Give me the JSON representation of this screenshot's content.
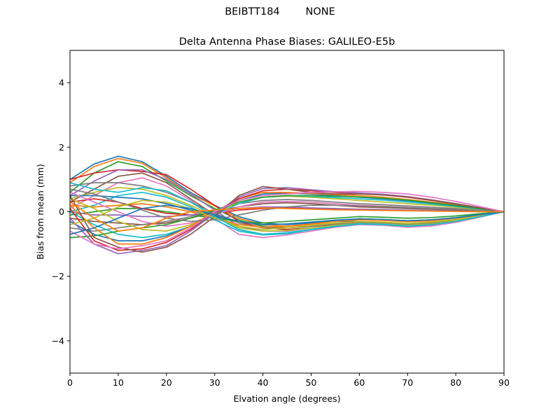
{
  "figure": {
    "suptitle": "BEIBTT184        NONE"
  },
  "chart_data": {
    "type": "line",
    "title": "Delta Antenna Phase Biases: GALILEO-E5b",
    "xlabel": "Elvation angle (degrees)",
    "ylabel": "Bias from mean (mm)",
    "xlim": [
      0,
      90
    ],
    "ylim": [
      -5,
      5
    ],
    "xticks": [
      0,
      10,
      20,
      30,
      40,
      50,
      60,
      70,
      80,
      90
    ],
    "yticks": [
      -4,
      -2,
      0,
      2,
      4
    ],
    "ytick_labels": [
      "−4",
      "−2",
      "0",
      "2",
      "4"
    ],
    "grid": false,
    "legend": "none",
    "x": [
      0,
      5,
      10,
      15,
      20,
      25,
      30,
      35,
      40,
      45,
      50,
      55,
      60,
      65,
      70,
      75,
      80,
      85,
      90
    ],
    "colors": [
      "#1f77b4",
      "#ff7f0e",
      "#2ca02c",
      "#d62728",
      "#9467bd",
      "#8c564b",
      "#e377c2",
      "#7f7f7f",
      "#bcbd22",
      "#17becf"
    ],
    "series": [
      {
        "values": [
          1.0,
          1.48,
          1.72,
          1.55,
          1.1,
          0.6,
          0.2,
          -0.15,
          -0.35,
          -0.4,
          -0.35,
          -0.3,
          -0.3,
          -0.35,
          -0.4,
          -0.35,
          -0.25,
          -0.12,
          0
        ]
      },
      {
        "values": [
          0.9,
          1.4,
          1.65,
          1.5,
          1.05,
          0.55,
          0.18,
          -0.2,
          -0.4,
          -0.45,
          -0.4,
          -0.35,
          -0.35,
          -0.4,
          -0.42,
          -0.38,
          -0.28,
          -0.14,
          0
        ]
      },
      {
        "values": [
          0.6,
          1.2,
          1.55,
          1.4,
          0.95,
          0.5,
          0.1,
          -0.25,
          -0.45,
          -0.5,
          -0.45,
          -0.38,
          -0.32,
          -0.35,
          -0.4,
          -0.36,
          -0.27,
          -0.13,
          0
        ]
      },
      {
        "values": [
          1.0,
          1.2,
          1.3,
          1.25,
          1.15,
          0.7,
          0.2,
          -0.3,
          -0.5,
          -0.55,
          -0.5,
          -0.4,
          -0.35,
          -0.38,
          -0.45,
          -0.4,
          -0.3,
          -0.15,
          0
        ]
      },
      {
        "values": [
          0.5,
          0.95,
          1.3,
          1.3,
          1.0,
          0.55,
          0.05,
          -0.45,
          -0.6,
          -0.6,
          -0.5,
          -0.42,
          -0.35,
          -0.38,
          -0.44,
          -0.4,
          -0.3,
          -0.15,
          0
        ]
      },
      {
        "values": [
          0.3,
          0.7,
          1.1,
          1.2,
          0.9,
          0.4,
          -0.1,
          -0.55,
          -0.7,
          -0.65,
          -0.55,
          -0.45,
          -0.38,
          -0.4,
          -0.46,
          -0.42,
          -0.32,
          -0.16,
          0
        ]
      },
      {
        "values": [
          0.1,
          0.5,
          0.9,
          1.05,
          0.8,
          0.35,
          -0.2,
          -0.7,
          -0.8,
          -0.72,
          -0.6,
          -0.48,
          -0.4,
          -0.42,
          -0.48,
          -0.44,
          -0.33,
          -0.17,
          0
        ]
      },
      {
        "values": [
          0.8,
          0.9,
          0.9,
          0.8,
          0.6,
          0.3,
          -0.05,
          -0.35,
          -0.5,
          -0.5,
          -0.45,
          -0.38,
          -0.33,
          -0.35,
          -0.4,
          -0.36,
          -0.27,
          -0.13,
          0
        ]
      },
      {
        "values": [
          0.4,
          0.6,
          0.75,
          0.7,
          0.5,
          0.2,
          -0.15,
          -0.5,
          -0.6,
          -0.58,
          -0.5,
          -0.42,
          -0.36,
          -0.38,
          -0.42,
          -0.38,
          -0.28,
          -0.14,
          0
        ]
      },
      {
        "values": [
          0.0,
          0.2,
          0.5,
          0.6,
          0.45,
          0.15,
          -0.25,
          -0.6,
          -0.72,
          -0.68,
          -0.56,
          -0.46,
          -0.38,
          -0.4,
          -0.45,
          -0.4,
          -0.3,
          -0.15,
          0
        ]
      },
      {
        "values": [
          0.5,
          0.5,
          0.45,
          0.4,
          0.25,
          0.05,
          -0.15,
          -0.3,
          -0.4,
          -0.38,
          -0.32,
          -0.26,
          -0.22,
          -0.24,
          -0.28,
          -0.25,
          -0.18,
          -0.09,
          0
        ]
      },
      {
        "values": [
          0.2,
          0.15,
          0.2,
          0.25,
          0.15,
          0.0,
          -0.2,
          -0.4,
          -0.48,
          -0.45,
          -0.38,
          -0.3,
          -0.25,
          -0.27,
          -0.31,
          -0.28,
          -0.2,
          -0.1,
          0
        ]
      },
      {
        "values": [
          -0.1,
          0.0,
          0.1,
          0.1,
          0.0,
          -0.1,
          -0.2,
          -0.3,
          -0.35,
          -0.3,
          -0.25,
          -0.2,
          -0.15,
          -0.17,
          -0.2,
          -0.18,
          -0.13,
          -0.06,
          0
        ]
      },
      {
        "values": [
          0.3,
          0.4,
          0.3,
          0.1,
          -0.05,
          -0.1,
          -0.05,
          0.05,
          0.1,
          0.12,
          0.1,
          0.08,
          0.06,
          0.05,
          0.04,
          0.03,
          0.02,
          0.01,
          0
        ]
      },
      {
        "values": [
          0.0,
          -0.1,
          -0.1,
          -0.15,
          -0.15,
          -0.1,
          0.0,
          0.1,
          0.15,
          0.15,
          0.12,
          0.1,
          0.08,
          0.07,
          0.05,
          0.04,
          0.03,
          0.01,
          0
        ]
      },
      {
        "values": [
          -0.2,
          -0.3,
          -0.35,
          -0.4,
          -0.35,
          -0.2,
          0.0,
          0.15,
          0.25,
          0.28,
          0.25,
          0.2,
          0.15,
          0.13,
          0.1,
          0.08,
          0.05,
          0.02,
          0
        ]
      },
      {
        "values": [
          0.6,
          0.3,
          0.0,
          -0.3,
          -0.45,
          -0.35,
          -0.1,
          0.15,
          0.3,
          0.32,
          0.3,
          0.25,
          0.2,
          0.17,
          0.14,
          0.1,
          0.07,
          0.03,
          0
        ]
      },
      {
        "values": [
          -0.5,
          -0.6,
          -0.5,
          -0.4,
          -0.3,
          -0.15,
          0.05,
          0.25,
          0.35,
          0.38,
          0.35,
          0.3,
          0.25,
          0.22,
          0.18,
          0.14,
          0.1,
          0.05,
          0
        ]
      },
      {
        "values": [
          0.4,
          0.1,
          -0.3,
          -0.55,
          -0.6,
          -0.4,
          -0.05,
          0.3,
          0.45,
          0.48,
          0.45,
          0.4,
          0.35,
          0.3,
          0.25,
          0.2,
          0.14,
          0.07,
          0
        ]
      },
      {
        "values": [
          0.0,
          -0.4,
          -0.7,
          -0.8,
          -0.7,
          -0.45,
          -0.1,
          0.25,
          0.45,
          0.5,
          0.48,
          0.44,
          0.4,
          0.36,
          0.3,
          0.24,
          0.17,
          0.08,
          0
        ]
      },
      {
        "values": [
          -0.3,
          -0.7,
          -0.9,
          -0.9,
          -0.75,
          -0.45,
          -0.05,
          0.35,
          0.55,
          0.58,
          0.55,
          0.5,
          0.45,
          0.4,
          0.34,
          0.27,
          0.19,
          0.09,
          0
        ]
      },
      {
        "values": [
          0.2,
          -0.5,
          -1.0,
          -1.0,
          -0.8,
          -0.45,
          0.0,
          0.4,
          0.6,
          0.6,
          0.57,
          0.53,
          0.5,
          0.45,
          0.38,
          0.3,
          0.21,
          0.1,
          0
        ]
      },
      {
        "values": [
          -0.8,
          -0.75,
          -0.6,
          -0.5,
          -0.4,
          -0.2,
          0.05,
          0.3,
          0.45,
          0.5,
          0.5,
          0.48,
          0.46,
          0.42,
          0.36,
          0.28,
          0.2,
          0.1,
          0
        ]
      },
      {
        "values": [
          0.1,
          -0.9,
          -1.2,
          -1.15,
          -0.95,
          -0.55,
          -0.05,
          0.4,
          0.65,
          0.7,
          0.65,
          0.6,
          0.57,
          0.52,
          0.45,
          0.35,
          0.24,
          0.12,
          0
        ]
      },
      {
        "values": [
          -0.2,
          -1.0,
          -1.3,
          -1.2,
          -1.05,
          -0.6,
          -0.05,
          0.45,
          0.72,
          0.75,
          0.68,
          0.62,
          0.58,
          0.54,
          0.47,
          0.37,
          0.25,
          0.12,
          0
        ]
      },
      {
        "values": [
          0.5,
          -0.8,
          -1.1,
          -1.25,
          -1.1,
          -0.7,
          -0.15,
          0.5,
          0.78,
          0.7,
          0.6,
          0.55,
          0.55,
          0.52,
          0.46,
          0.36,
          0.25,
          0.12,
          0
        ]
      },
      {
        "values": [
          -0.6,
          -1.0,
          -1.15,
          -1.05,
          -0.9,
          -0.5,
          0.0,
          0.35,
          0.5,
          0.55,
          0.6,
          0.62,
          0.63,
          0.6,
          0.55,
          0.45,
          0.32,
          0.16,
          0
        ]
      },
      {
        "values": [
          0.7,
          0.55,
          0.3,
          0.05,
          -0.2,
          -0.3,
          -0.25,
          -0.1,
          0.05,
          0.15,
          0.2,
          0.2,
          0.18,
          0.16,
          0.13,
          0.1,
          0.07,
          0.03,
          0
        ]
      },
      {
        "values": [
          -0.4,
          -0.2,
          0.15,
          0.35,
          0.3,
          0.1,
          -0.2,
          -0.45,
          -0.55,
          -0.5,
          -0.42,
          -0.35,
          -0.3,
          -0.32,
          -0.36,
          -0.32,
          -0.24,
          -0.12,
          0
        ]
      },
      {
        "values": [
          0.9,
          0.7,
          0.6,
          0.75,
          0.65,
          0.3,
          -0.15,
          -0.55,
          -0.7,
          -0.65,
          -0.55,
          -0.45,
          -0.37,
          -0.39,
          -0.44,
          -0.4,
          -0.3,
          -0.15,
          0
        ]
      },
      {
        "values": [
          -0.7,
          -0.5,
          -0.2,
          0.1,
          0.2,
          0.1,
          -0.1,
          -0.3,
          -0.4,
          -0.38,
          -0.33,
          -0.27,
          -0.22,
          -0.24,
          -0.28,
          -0.25,
          -0.19,
          -0.09,
          0
        ]
      },
      {
        "values": [
          0.3,
          -0.2,
          -0.6,
          -0.5,
          -0.2,
          0.0,
          0.05,
          0.1,
          0.12,
          0.1,
          0.08,
          0.06,
          0.05,
          0.04,
          0.03,
          0.02,
          0.01,
          0.0,
          0
        ]
      }
    ]
  }
}
